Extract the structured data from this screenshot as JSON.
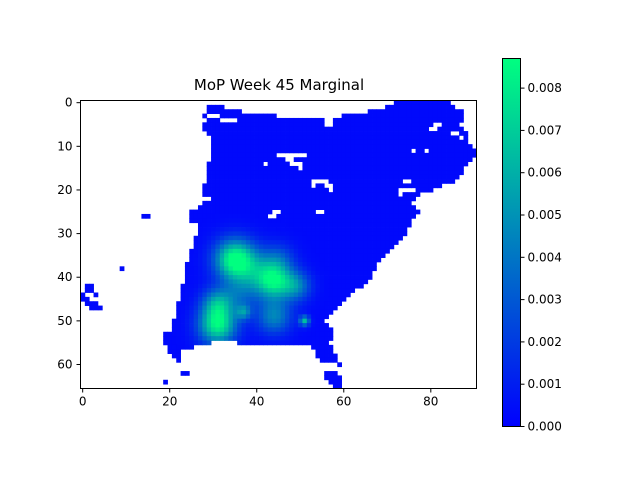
{
  "chart_data": {
    "type": "heatmap",
    "title": "MoP Week 45 Marginal",
    "xlabel": "",
    "ylabel": "",
    "xlim": [
      -0.5,
      90.5
    ],
    "ylim": [
      65.5,
      -0.5
    ],
    "x_ticks": [
      0,
      20,
      40,
      60,
      80
    ],
    "y_ticks": [
      0,
      10,
      20,
      30,
      40,
      50,
      60
    ],
    "x_tick_labels": [
      "0",
      "20",
      "40",
      "60",
      "80"
    ],
    "y_tick_labels": [
      "0",
      "10",
      "20",
      "30",
      "40",
      "50",
      "60"
    ],
    "colormap": "winter",
    "colormap_low": "#0000ff",
    "colormap_high": "#00ff80",
    "colorbar": {
      "range": [
        0.0,
        0.0087
      ],
      "ticks": [
        0.0,
        0.001,
        0.002,
        0.003,
        0.004,
        0.005,
        0.006,
        0.007,
        0.008
      ],
      "tick_labels": [
        "0.000",
        "0.001",
        "0.002",
        "0.003",
        "0.004",
        "0.005",
        "0.006",
        "0.007",
        "0.008"
      ]
    },
    "grid": false,
    "background_value": 0.0003,
    "land_mask_rows": [
      {
        "y": 0,
        "spans": [
          [
            72,
            84
          ]
        ]
      },
      {
        "y": 1,
        "spans": [
          [
            29,
            32
          ],
          [
            70,
            85
          ]
        ]
      },
      {
        "y": 2,
        "spans": [
          [
            29,
            36
          ],
          [
            66,
            87
          ]
        ]
      },
      {
        "y": 3,
        "spans": [
          [
            28,
            44
          ],
          [
            60,
            87
          ]
        ]
      },
      {
        "y": 4,
        "spans": [
          [
            28,
            87
          ]
        ]
      },
      {
        "y": 5,
        "spans": [
          [
            28,
            86
          ]
        ]
      },
      {
        "y": 6,
        "spans": [
          [
            28,
            87
          ]
        ]
      },
      {
        "y": 7,
        "spans": [
          [
            29,
            88
          ]
        ]
      },
      {
        "y": 8,
        "spans": [
          [
            30,
            88
          ]
        ]
      },
      {
        "y": 9,
        "spans": [
          [
            30,
            88
          ]
        ]
      },
      {
        "y": 10,
        "spans": [
          [
            30,
            89
          ]
        ]
      },
      {
        "y": 11,
        "spans": [
          [
            30,
            90
          ]
        ]
      },
      {
        "y": 12,
        "spans": [
          [
            30,
            90
          ]
        ]
      },
      {
        "y": 13,
        "spans": [
          [
            30,
            89
          ]
        ]
      },
      {
        "y": 14,
        "spans": [
          [
            29,
            88
          ]
        ]
      },
      {
        "y": 15,
        "spans": [
          [
            29,
            87
          ]
        ]
      },
      {
        "y": 16,
        "spans": [
          [
            29,
            87
          ]
        ]
      },
      {
        "y": 17,
        "spans": [
          [
            29,
            86
          ]
        ]
      },
      {
        "y": 18,
        "spans": [
          [
            29,
            85
          ]
        ]
      },
      {
        "y": 19,
        "spans": [
          [
            28,
            84
          ]
        ]
      },
      {
        "y": 20,
        "spans": [
          [
            28,
            80
          ]
        ]
      },
      {
        "y": 21,
        "spans": [
          [
            28,
            77
          ]
        ]
      },
      {
        "y": 22,
        "spans": [
          [
            28,
            76
          ]
        ]
      },
      {
        "y": 23,
        "spans": [
          [
            28,
            75
          ]
        ]
      },
      {
        "y": 24,
        "spans": [
          [
            27,
            76
          ]
        ]
      },
      {
        "y": 25,
        "spans": [
          [
            25,
            77
          ]
        ]
      },
      {
        "y": 26,
        "spans": [
          [
            14,
            15
          ],
          [
            25,
            76
          ]
        ]
      },
      {
        "y": 27,
        "spans": [
          [
            25,
            75
          ]
        ]
      },
      {
        "y": 28,
        "spans": [
          [
            27,
            75
          ]
        ]
      },
      {
        "y": 29,
        "spans": [
          [
            27,
            74
          ]
        ]
      },
      {
        "y": 30,
        "spans": [
          [
            27,
            74
          ]
        ]
      },
      {
        "y": 31,
        "spans": [
          [
            26,
            73
          ]
        ]
      },
      {
        "y": 32,
        "spans": [
          [
            26,
            72
          ]
        ]
      },
      {
        "y": 33,
        "spans": [
          [
            26,
            71
          ]
        ]
      },
      {
        "y": 34,
        "spans": [
          [
            25,
            70
          ]
        ]
      },
      {
        "y": 35,
        "spans": [
          [
            25,
            69
          ]
        ]
      },
      {
        "y": 36,
        "spans": [
          [
            25,
            68
          ]
        ]
      },
      {
        "y": 37,
        "spans": [
          [
            24,
            67
          ]
        ]
      },
      {
        "y": 38,
        "spans": [
          [
            9,
            9
          ],
          [
            24,
            67
          ]
        ]
      },
      {
        "y": 39,
        "spans": [
          [
            24,
            66
          ]
        ]
      },
      {
        "y": 40,
        "spans": [
          [
            24,
            66
          ]
        ]
      },
      {
        "y": 41,
        "spans": [
          [
            24,
            65
          ]
        ]
      },
      {
        "y": 42,
        "spans": [
          [
            1,
            2
          ],
          [
            23,
            64
          ]
        ]
      },
      {
        "y": 43,
        "spans": [
          [
            1,
            2
          ],
          [
            23,
            62
          ]
        ]
      },
      {
        "y": 44,
        "spans": [
          [
            0,
            0
          ],
          [
            3,
            3
          ],
          [
            23,
            61
          ]
        ]
      },
      {
        "y": 45,
        "spans": [
          [
            0,
            1
          ],
          [
            23,
            60
          ]
        ]
      },
      {
        "y": 46,
        "spans": [
          [
            1,
            3
          ],
          [
            22,
            59
          ]
        ]
      },
      {
        "y": 47,
        "spans": [
          [
            2,
            4
          ],
          [
            22,
            58
          ]
        ]
      },
      {
        "y": 48,
        "spans": [
          [
            22,
            57
          ]
        ]
      },
      {
        "y": 49,
        "spans": [
          [
            22,
            56
          ]
        ]
      },
      {
        "y": 50,
        "spans": [
          [
            21,
            55
          ]
        ]
      },
      {
        "y": 51,
        "spans": [
          [
            21,
            56
          ]
        ]
      },
      {
        "y": 52,
        "spans": [
          [
            21,
            57
          ]
        ]
      },
      {
        "y": 53,
        "spans": [
          [
            19,
            57
          ]
        ]
      },
      {
        "y": 54,
        "spans": [
          [
            19,
            57
          ]
        ]
      },
      {
        "y": 55,
        "spans": [
          [
            19,
            29
          ],
          [
            36,
            56
          ]
        ]
      },
      {
        "y": 56,
        "spans": [
          [
            20,
            25
          ],
          [
            53,
            57
          ]
        ]
      },
      {
        "y": 57,
        "spans": [
          [
            20,
            22
          ],
          [
            54,
            57
          ]
        ]
      },
      {
        "y": 58,
        "spans": [
          [
            21,
            22
          ],
          [
            54,
            58
          ]
        ]
      },
      {
        "y": 59,
        "spans": [
          [
            22,
            22
          ],
          [
            55,
            58
          ]
        ]
      },
      {
        "y": 60,
        "spans": [
          [
            59,
            59
          ]
        ]
      },
      {
        "y": 61,
        "spans": []
      },
      {
        "y": 62,
        "spans": [
          [
            23,
            24
          ],
          [
            56,
            58
          ]
        ]
      },
      {
        "y": 63,
        "spans": [
          [
            56,
            59
          ]
        ]
      },
      {
        "y": 64,
        "spans": [
          [
            19,
            19
          ],
          [
            57,
            59
          ]
        ]
      },
      {
        "y": 65,
        "spans": [
          [
            58,
            59
          ]
        ]
      }
    ],
    "land_mask_holes": [
      [
        42,
        2
      ],
      [
        43,
        2
      ],
      [
        29,
        3
      ],
      [
        30,
        3
      ],
      [
        31,
        3
      ],
      [
        28,
        4
      ],
      [
        32,
        4
      ],
      [
        33,
        4
      ],
      [
        34,
        4
      ],
      [
        35,
        4
      ],
      [
        56,
        4
      ],
      [
        57,
        4
      ],
      [
        56,
        5
      ],
      [
        57,
        5
      ],
      [
        81,
        5
      ],
      [
        82,
        5
      ],
      [
        80,
        6
      ],
      [
        81,
        6
      ],
      [
        76,
        11
      ],
      [
        79,
        11
      ],
      [
        85,
        7
      ],
      [
        86,
        7
      ],
      [
        87,
        8
      ],
      [
        45,
        12
      ],
      [
        46,
        12
      ],
      [
        47,
        12
      ],
      [
        48,
        12
      ],
      [
        49,
        12
      ],
      [
        50,
        12
      ],
      [
        51,
        12
      ],
      [
        47,
        13
      ],
      [
        48,
        13
      ],
      [
        42,
        14
      ],
      [
        48,
        14
      ],
      [
        49,
        14
      ],
      [
        50,
        14
      ],
      [
        50,
        15
      ],
      [
        53,
        18
      ],
      [
        54,
        18
      ],
      [
        55,
        18
      ],
      [
        56,
        18
      ],
      [
        53,
        19
      ],
      [
        56,
        19
      ],
      [
        57,
        19
      ],
      [
        57,
        20
      ],
      [
        83,
        19
      ],
      [
        84,
        19
      ],
      [
        74,
        18
      ],
      [
        75,
        18
      ],
      [
        73,
        20
      ],
      [
        74,
        20
      ],
      [
        75,
        20
      ],
      [
        76,
        20
      ],
      [
        73,
        21
      ],
      [
        28,
        22
      ],
      [
        29,
        22
      ],
      [
        44,
        25
      ],
      [
        45,
        25
      ],
      [
        54,
        25
      ],
      [
        55,
        25
      ],
      [
        43,
        26
      ],
      [
        44,
        26
      ]
    ],
    "hotspots": [
      {
        "x": 35,
        "y": 36,
        "peak": 0.0087,
        "radius": 3.2
      },
      {
        "x": 44,
        "y": 41,
        "peak": 0.0066,
        "radius": 2.8
      },
      {
        "x": 31,
        "y": 51,
        "peak": 0.0078,
        "radius": 3.0
      },
      {
        "x": 31,
        "y": 46,
        "peak": 0.0046,
        "radius": 2.5
      },
      {
        "x": 44,
        "y": 49,
        "peak": 0.0042,
        "radius": 2.8
      },
      {
        "x": 40,
        "y": 39,
        "peak": 0.0032,
        "radius": 3.5
      },
      {
        "x": 49,
        "y": 42,
        "peak": 0.004,
        "radius": 2.4
      },
      {
        "x": 45,
        "y": 36,
        "peak": 0.0024,
        "radius": 2.6
      },
      {
        "x": 36,
        "y": 44,
        "peak": 0.0022,
        "radius": 2.8
      },
      {
        "x": 37,
        "y": 48,
        "peak": 0.0036,
        "radius": 1.2
      },
      {
        "x": 51,
        "y": 50,
        "peak": 0.006,
        "radius": 0.8
      }
    ]
  }
}
